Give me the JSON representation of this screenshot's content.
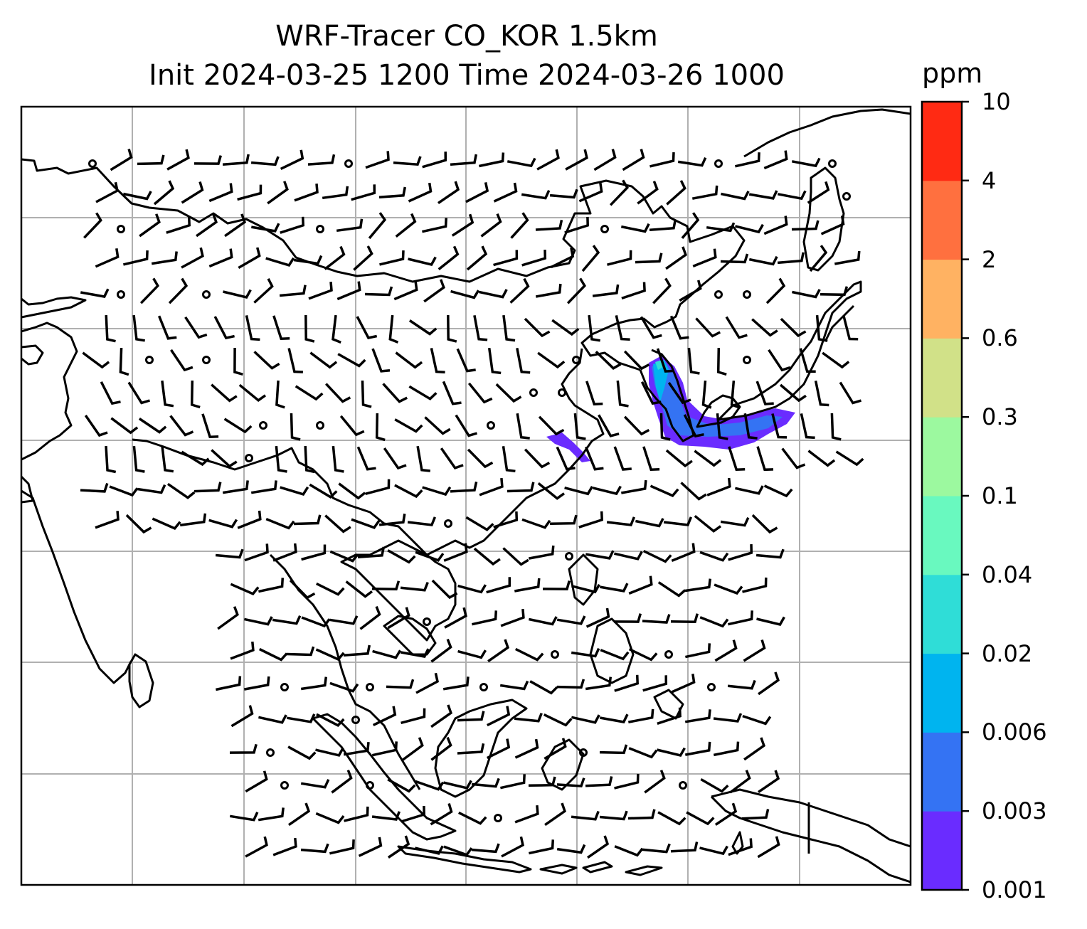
{
  "title": {
    "line1": "WRF-Tracer CO_KOR 1.5km",
    "line2": "Init 2024-03-25 1200 Time 2024-03-26 1000"
  },
  "colorbar": {
    "unit": "ppm",
    "ticks": [
      "0.001",
      "0.003",
      "0.006",
      "0.02",
      "0.04",
      "0.1",
      "0.3",
      "0.6",
      "2",
      "4",
      "10"
    ],
    "colors": [
      "#6a2cff",
      "#3473f3",
      "#00b4ef",
      "#2fddd7",
      "#69f9bf",
      "#9cf99f",
      "#d1e188",
      "#ffb262",
      "#ff703f",
      "#ff2a13"
    ]
  },
  "map": {
    "gridlines": true,
    "coastline_color": "#000000",
    "grid_color": "#b0b0b0",
    "plume_colors": {
      "outer": "#6a2cff",
      "mid": "#3473f3",
      "inner": "#00b4ef",
      "core": "#2fddd7"
    }
  }
}
